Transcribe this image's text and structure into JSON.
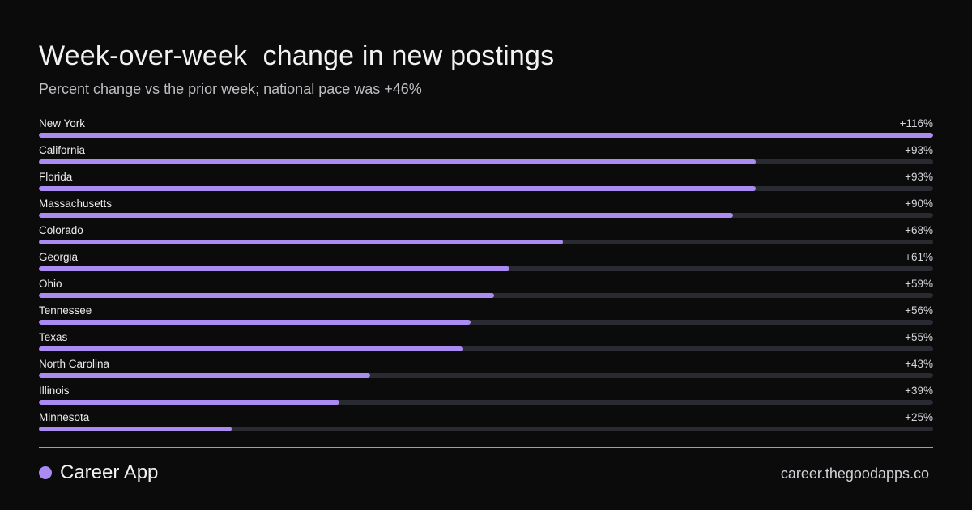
{
  "chart_data": {
    "type": "bar",
    "orientation": "horizontal",
    "title": "Week-over-week  change in new postings",
    "subtitle": "Percent change vs the prior week; national pace was +46%",
    "xlim": [
      0,
      116
    ],
    "categories": [
      "New York",
      "California",
      "Florida",
      "Massachusetts",
      "Colorado",
      "Georgia",
      "Ohio",
      "Tennessee",
      "Texas",
      "North Carolina",
      "Illinois",
      "Minnesota"
    ],
    "values": [
      116,
      93,
      93,
      90,
      68,
      61,
      59,
      56,
      55,
      43,
      39,
      25
    ],
    "value_labels": [
      "+116%",
      "+93%",
      "+93%",
      "+90%",
      "+68%",
      "+61%",
      "+59%",
      "+56%",
      "+55%",
      "+43%",
      "+39%",
      "+25%"
    ],
    "grid": false,
    "legend": "none"
  },
  "footer": {
    "brand": "Career App",
    "url": "career.thegoodapps.co"
  },
  "colors": {
    "background": "#0b0b0c",
    "accent": "#a98bf2",
    "track": "#2a2a33"
  },
  "icons": {
    "brand": "dot-icon"
  }
}
